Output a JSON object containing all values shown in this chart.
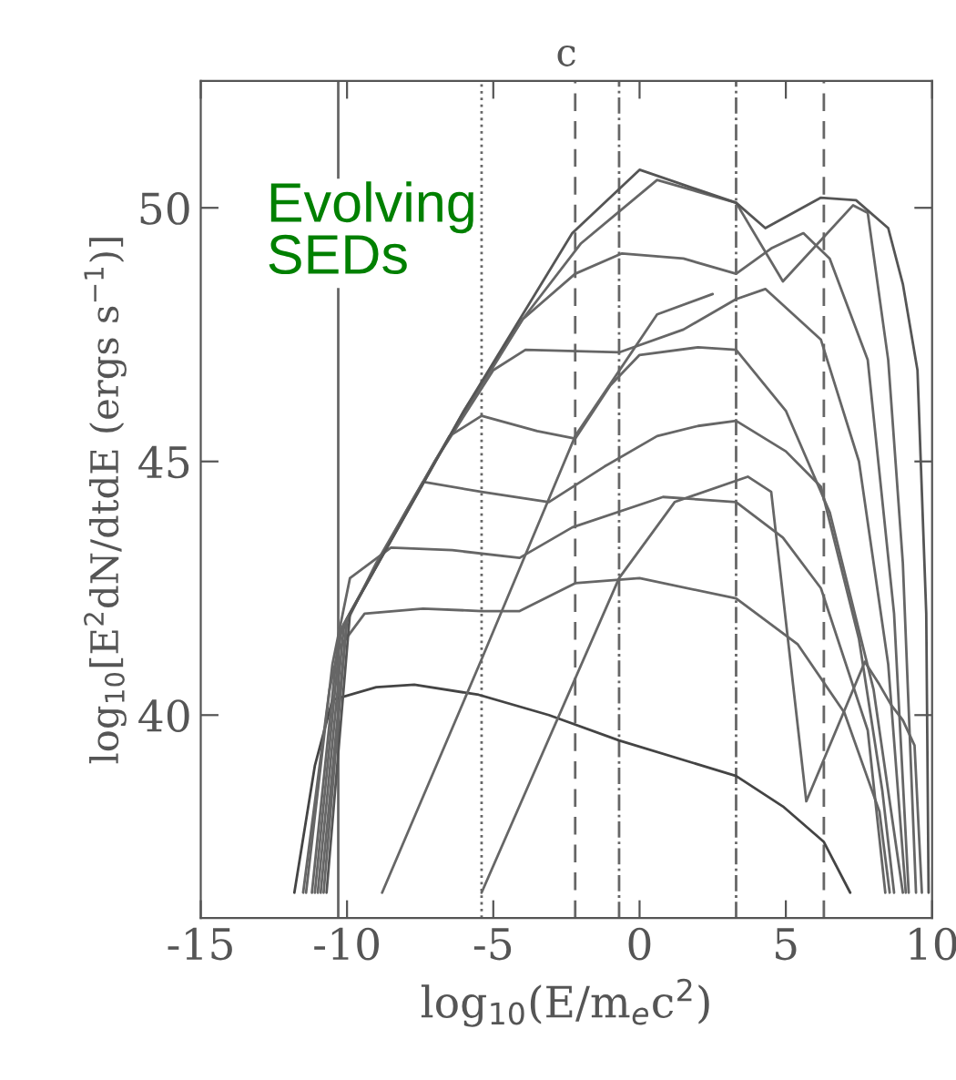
{
  "chart_data": {
    "type": "line",
    "title": "c",
    "xlabel": "log$_{10}$(E/m$_{e}$c$^{2}$)",
    "ylabel": "log$_{10}$[E$^{2}$dN/dtdE (ergs s$^{−1}$)]",
    "annotations": [
      "Evolving\nSEDs"
    ],
    "xlim": [
      -15,
      10
    ],
    "ylim": [
      36,
      52.5
    ],
    "xticks": [
      -15,
      -10,
      -5,
      0,
      5,
      10
    ],
    "yticks": [
      40,
      45,
      50
    ],
    "grid": false,
    "legend": false,
    "marker": "none",
    "line_style": "solid",
    "ref_lines": [
      {
        "axis": "x",
        "value": -10.3,
        "line_style": "solid",
        "color": "#666666"
      },
      {
        "axis": "x",
        "value": -5.4,
        "line_style": "dotted",
        "color": "#666666"
      },
      {
        "axis": "x",
        "value": -2.2,
        "line_style": "dashed",
        "color": "#666666"
      },
      {
        "axis": "x",
        "value": -0.7,
        "line_style": "dashdot",
        "color": "#666666"
      },
      {
        "axis": "x",
        "value": 3.3,
        "line_style": "dashdot",
        "color": "#666666"
      },
      {
        "axis": "x",
        "value": 6.3,
        "line_style": "dashed",
        "color": "#666666"
      }
    ],
    "series": [
      {
        "color": "#444444",
        "x": [
          -11.8,
          -11.1,
          -10.5,
          -9.0,
          -7.7,
          -5.5,
          -3.1,
          -0.7,
          3.3,
          4.9,
          6.3,
          7.2
        ],
        "values": [
          36.5,
          39.0,
          40.3,
          40.55,
          40.6,
          40.4,
          40.0,
          39.5,
          38.8,
          38.2,
          37.5,
          36.5
        ]
      },
      {
        "color": "#666666",
        "x": [
          -11.5,
          -10.6,
          -10.3,
          -9.4,
          -7.4,
          -5.4,
          -4.1,
          -2.2,
          0.0,
          3.3,
          5.4,
          7.0,
          8.2,
          8.55
        ],
        "values": [
          36.5,
          40.5,
          41.3,
          42.0,
          42.1,
          42.05,
          42.05,
          42.6,
          42.7,
          42.3,
          41.4,
          40.05,
          38.1,
          36.5
        ]
      },
      {
        "color": "#666666",
        "x": [
          -11.4,
          -10.5,
          -9.9,
          -8.5,
          -6.4,
          -4.1,
          -2.3,
          0.8,
          3.3,
          4.9,
          6.2,
          7.8,
          8.4
        ],
        "values": [
          36.5,
          41.0,
          42.7,
          43.3,
          43.25,
          43.1,
          43.7,
          44.3,
          44.2,
          43.5,
          42.5,
          39.7,
          36.5
        ]
      },
      {
        "color": "#666666",
        "x": [
          -11.2,
          -10.3,
          -9.0,
          -7.4,
          -5.4,
          -3.1,
          -1.2,
          0.6,
          2.0,
          3.3,
          5.0,
          6.2,
          7.5,
          8.3,
          8.7
        ],
        "values": [
          36.5,
          41.5,
          43.0,
          44.6,
          44.4,
          44.2,
          44.9,
          45.5,
          45.7,
          45.8,
          45.2,
          44.5,
          41.5,
          38.5,
          36.5
        ]
      },
      {
        "color": "#666666",
        "x": [
          -11.1,
          -10.2,
          -8.0,
          -6.5,
          -5.4,
          -3.5,
          -2.2,
          -1.0,
          0.0,
          2.0,
          3.3,
          5.0,
          6.5,
          8.0,
          9.0
        ],
        "values": [
          36.5,
          41.7,
          44.0,
          45.5,
          45.9,
          45.6,
          45.45,
          46.5,
          47.1,
          47.25,
          47.2,
          46.0,
          44.0,
          40.5,
          36.5
        ]
      },
      {
        "color": "#666666",
        "x": [
          -11.0,
          -10.1,
          -7.0,
          -5.0,
          -3.9,
          -0.7,
          1.5,
          3.3,
          4.3,
          6.2,
          7.5,
          8.5,
          9.1
        ],
        "values": [
          36.5,
          41.8,
          45.0,
          46.8,
          47.2,
          47.15,
          47.6,
          48.2,
          48.4,
          47.4,
          45.0,
          41.0,
          36.5
        ]
      },
      {
        "color": "#666666",
        "x": [
          -10.9,
          -10.0,
          -6.0,
          -4.0,
          -2.2,
          -0.6,
          1.5,
          3.3,
          4.5,
          5.6,
          6.5,
          7.8,
          8.7,
          9.2
        ],
        "values": [
          36.5,
          41.9,
          46.0,
          47.8,
          48.7,
          49.1,
          49.0,
          48.7,
          49.2,
          49.5,
          49.0,
          47.0,
          42.0,
          36.5
        ]
      },
      {
        "color": "#666666",
        "x": [
          -10.8,
          -10.0,
          -7.0,
          -4.0,
          -2.0,
          0.6,
          3.3,
          4.9,
          7.3,
          7.8,
          8.5,
          9.0,
          9.45
        ],
        "values": [
          36.5,
          41.9,
          45.0,
          47.8,
          49.3,
          50.55,
          50.1,
          48.55,
          50.05,
          49.9,
          47.0,
          43.0,
          36.5
        ]
      },
      {
        "color": "#555555",
        "x": [
          -10.7,
          -9.9,
          -6.0,
          -2.3,
          0.0,
          3.3,
          4.3,
          6.2,
          7.4,
          8.5,
          9.0,
          9.5,
          9.8,
          9.88
        ],
        "values": [
          36.5,
          42.0,
          46.0,
          49.5,
          50.75,
          50.1,
          49.6,
          50.2,
          50.15,
          49.6,
          48.5,
          46.8,
          42.0,
          36.5
        ]
      },
      {
        "color": "#666666",
        "x": [
          -8.8,
          -5.4,
          -2.2,
          0.6,
          2.5
        ],
        "values": [
          36.5,
          41.1,
          45.5,
          47.9,
          48.3
        ]
      },
      {
        "color": "#666666",
        "x": [
          -5.4,
          -0.7,
          1.2,
          3.7,
          4.5,
          5.7,
          7.7,
          8.2,
          8.6,
          9.0,
          9.4,
          9.65
        ],
        "values": [
          36.5,
          42.7,
          44.2,
          44.7,
          44.4,
          38.3,
          41.05,
          40.6,
          40.2,
          39.9,
          39.4,
          36.5
        ]
      }
    ]
  }
}
